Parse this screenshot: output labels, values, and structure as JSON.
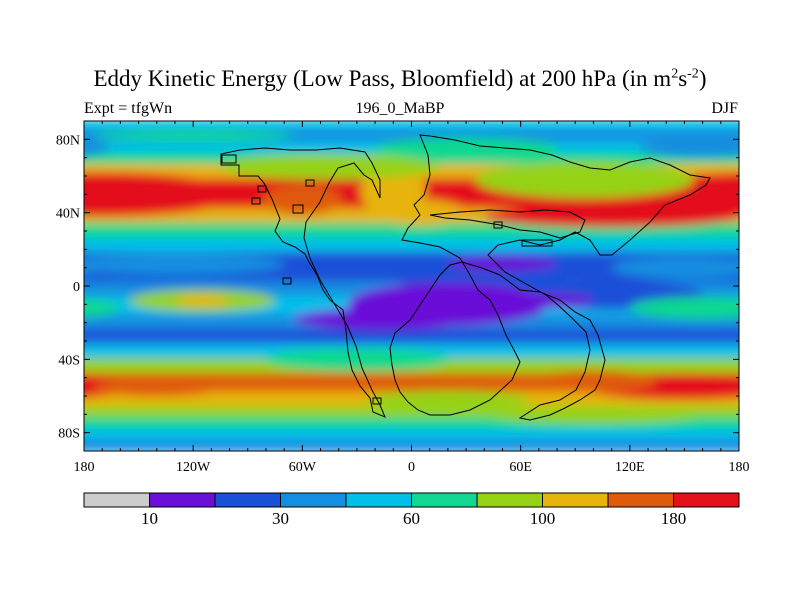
{
  "chart_data": {
    "type": "heatmap",
    "title": "Eddy Kinetic Energy (Low Pass, Bloomfield) at 200 hPa (in m²s⁻²)",
    "title_parts": {
      "main": "Eddy Kinetic Energy (Low Pass, Bloomfield) at 200 hPa (in m",
      "sup1": "2",
      "mid": "s",
      "sup2": "-2",
      "end": ")"
    },
    "subtitle_left": "Expt = tfgWn",
    "subtitle_center": "196_0_MaBP",
    "subtitle_right": "DJF",
    "xlim": [
      -180,
      180
    ],
    "ylim": [
      -90,
      90
    ],
    "x_ticks": [
      {
        "value": -180,
        "label": "180"
      },
      {
        "value": -120,
        "label": "120W"
      },
      {
        "value": -60,
        "label": "60W"
      },
      {
        "value": 0,
        "label": "0"
      },
      {
        "value": 60,
        "label": "60E"
      },
      {
        "value": 120,
        "label": "120E"
      },
      {
        "value": 180,
        "label": "180"
      }
    ],
    "y_ticks": [
      {
        "value": 80,
        "label": "80N"
      },
      {
        "value": 40,
        "label": "40N"
      },
      {
        "value": 0,
        "label": "0"
      },
      {
        "value": -40,
        "label": "40S"
      },
      {
        "value": -80,
        "label": "80S"
      }
    ],
    "colorbar": {
      "colors": [
        "#cccccc",
        "#6a10d8",
        "#1a4fd8",
        "#148ee0",
        "#00c0e8",
        "#10d890",
        "#96d214",
        "#e6b40a",
        "#e05a0c",
        "#e4101a"
      ],
      "labels": [
        {
          "boundary": 1,
          "label": "10"
        },
        {
          "boundary": 3,
          "label": "30"
        },
        {
          "boundary": 5,
          "label": "60"
        },
        {
          "boundary": 7,
          "label": "100"
        },
        {
          "boundary": 9,
          "label": "180"
        }
      ]
    },
    "lat_bands": [
      [
        90,
        85,
        4
      ],
      [
        85,
        78,
        3
      ],
      [
        78,
        72,
        4
      ],
      [
        72,
        66,
        5
      ],
      [
        66,
        58,
        7
      ],
      [
        58,
        42,
        9
      ],
      [
        42,
        34,
        7
      ],
      [
        34,
        26,
        5
      ],
      [
        26,
        18,
        4
      ],
      [
        18,
        10,
        2
      ],
      [
        10,
        2,
        2
      ],
      [
        2,
        -6,
        3
      ],
      [
        -6,
        -16,
        4
      ],
      [
        -16,
        -24,
        3
      ],
      [
        -24,
        -32,
        2
      ],
      [
        -32,
        -40,
        4
      ],
      [
        -40,
        -48,
        6
      ],
      [
        -48,
        -58,
        8
      ],
      [
        -58,
        -66,
        7
      ],
      [
        -66,
        -72,
        6
      ],
      [
        -72,
        -78,
        5
      ],
      [
        -78,
        -84,
        4
      ],
      [
        -84,
        -90,
        3
      ]
    ],
    "blobs": [
      {
        "lon": -170,
        "lat": 50,
        "rx": 75,
        "ry": 12,
        "level": 9
      },
      {
        "lon": -60,
        "lat": 47,
        "rx": 22,
        "ry": 8,
        "level": 8
      },
      {
        "lon": -10,
        "lat": 52,
        "rx": 18,
        "ry": 14,
        "level": 7
      },
      {
        "lon": 5,
        "lat": 40,
        "rx": 25,
        "ry": 7,
        "level": 7
      },
      {
        "lon": 110,
        "lat": 38,
        "rx": 70,
        "ry": 6,
        "level": 9
      },
      {
        "lon": 95,
        "lat": 58,
        "rx": 60,
        "ry": 10,
        "level": 6
      },
      {
        "lon": -45,
        "lat": 65,
        "rx": 60,
        "ry": 7,
        "level": 6
      },
      {
        "lon": 30,
        "lat": 75,
        "rx": 50,
        "ry": 6,
        "level": 5
      },
      {
        "lon": -120,
        "lat": 82,
        "rx": 55,
        "ry": 3,
        "level": 5
      },
      {
        "lon": 160,
        "lat": 75,
        "rx": 35,
        "ry": 5,
        "level": 3
      },
      {
        "lon": 40,
        "lat": 6,
        "rx": 50,
        "ry": 10,
        "level": 2
      },
      {
        "lon": 110,
        "lat": -5,
        "rx": 50,
        "ry": 8,
        "level": 2
      },
      {
        "lon": 150,
        "lat": 10,
        "rx": 40,
        "ry": 6,
        "level": 3
      },
      {
        "lon": 20,
        "lat": -10,
        "rx": 55,
        "ry": 12,
        "level": 1
      },
      {
        "lon": -15,
        "lat": -18,
        "rx": 50,
        "ry": 6,
        "level": 1
      },
      {
        "lon": 75,
        "lat": -8,
        "rx": 25,
        "ry": 4,
        "level": 1
      },
      {
        "lon": 50,
        "lat": 12,
        "rx": 30,
        "ry": 4,
        "level": 1
      },
      {
        "lon": -115,
        "lat": -8,
        "rx": 40,
        "ry": 6,
        "level": 6
      },
      {
        "lon": -115,
        "lat": -8,
        "rx": 15,
        "ry": 3,
        "level": 7
      },
      {
        "lon": 160,
        "lat": -12,
        "rx": 40,
        "ry": 6,
        "level": 5
      },
      {
        "lon": -130,
        "lat": 12,
        "rx": 60,
        "ry": 6,
        "level": 3
      },
      {
        "lon": -30,
        "lat": -40,
        "rx": 50,
        "ry": 6,
        "level": 5
      },
      {
        "lon": 150,
        "lat": -55,
        "rx": 55,
        "ry": 7,
        "level": 9
      },
      {
        "lon": 100,
        "lat": -52,
        "rx": 35,
        "ry": 6,
        "level": 8
      },
      {
        "lon": -175,
        "lat": -55,
        "rx": 12,
        "ry": 3,
        "level": 9
      },
      {
        "lon": -140,
        "lat": -55,
        "rx": 35,
        "ry": 5,
        "level": 8
      },
      {
        "lon": 20,
        "lat": -62,
        "rx": 45,
        "ry": 5,
        "level": 6
      },
      {
        "lon": 100,
        "lat": -70,
        "rx": 60,
        "ry": 5,
        "level": 6
      }
    ]
  }
}
